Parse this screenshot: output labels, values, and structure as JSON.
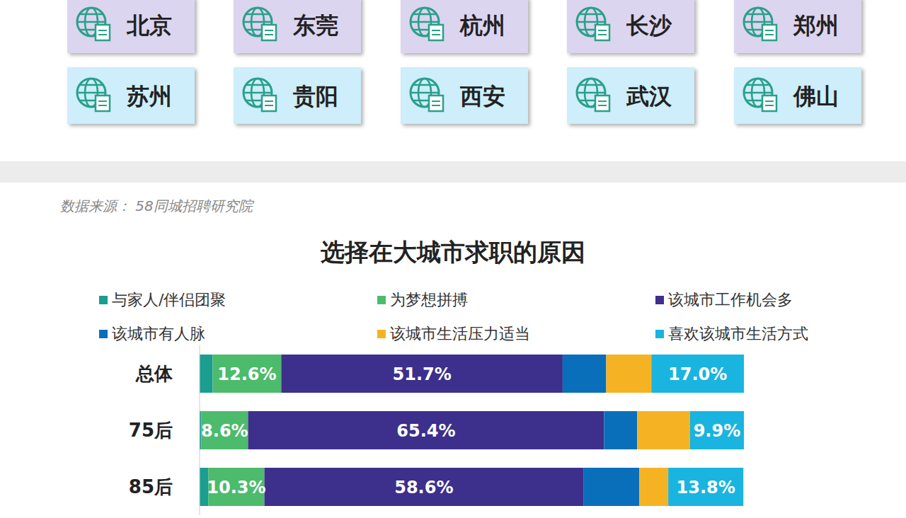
{
  "cities": [
    "北京",
    "东莞",
    "杭州",
    "长沙",
    "郑州",
    "苏州",
    "贵阳",
    "西安",
    "武汉",
    "佛山"
  ],
  "source": "数据来源： 58同城招聘研究院",
  "chart_data": {
    "type": "bar",
    "orientation": "horizontal",
    "stacked": true,
    "title": "选择在大城市求职的原因",
    "categories": [
      "总体",
      "75后",
      "85后"
    ],
    "xlim": [
      0,
      100
    ],
    "tick_labels": "y",
    "legend": "top",
    "series": [
      {
        "name": "与家人/伴侣团聚",
        "color": "#1a9e8f",
        "values": [
          2.4,
          0.3,
          1.6
        ],
        "data_labels": false
      },
      {
        "name": "为梦想拼搏",
        "color": "#4cbb6c",
        "values": [
          12.6,
          8.6,
          10.3
        ],
        "data_labels": true,
        "value_labels": [
          "12.6%",
          "8.6%",
          "10.3%"
        ]
      },
      {
        "name": "该城市工作机会多",
        "color": "#3d2f8c",
        "values": [
          51.7,
          65.4,
          58.6
        ],
        "data_labels": true,
        "value_labels": [
          "51.7%",
          "65.4%",
          "58.6%"
        ]
      },
      {
        "name": "该城市有人脉",
        "color": "#0a6fba",
        "values": [
          8.0,
          6.1,
          10.3
        ],
        "data_labels": false
      },
      {
        "name": "该城市生活压力适当",
        "color": "#f5b324",
        "values": [
          8.3,
          9.7,
          5.3
        ],
        "data_labels": false
      },
      {
        "name": "喜欢该城市生活方式",
        "color": "#1ab4e0",
        "values": [
          17.0,
          9.9,
          13.8
        ],
        "data_labels": true,
        "value_labels": [
          "17.0%",
          "9.9%",
          "13.8%"
        ]
      }
    ]
  }
}
